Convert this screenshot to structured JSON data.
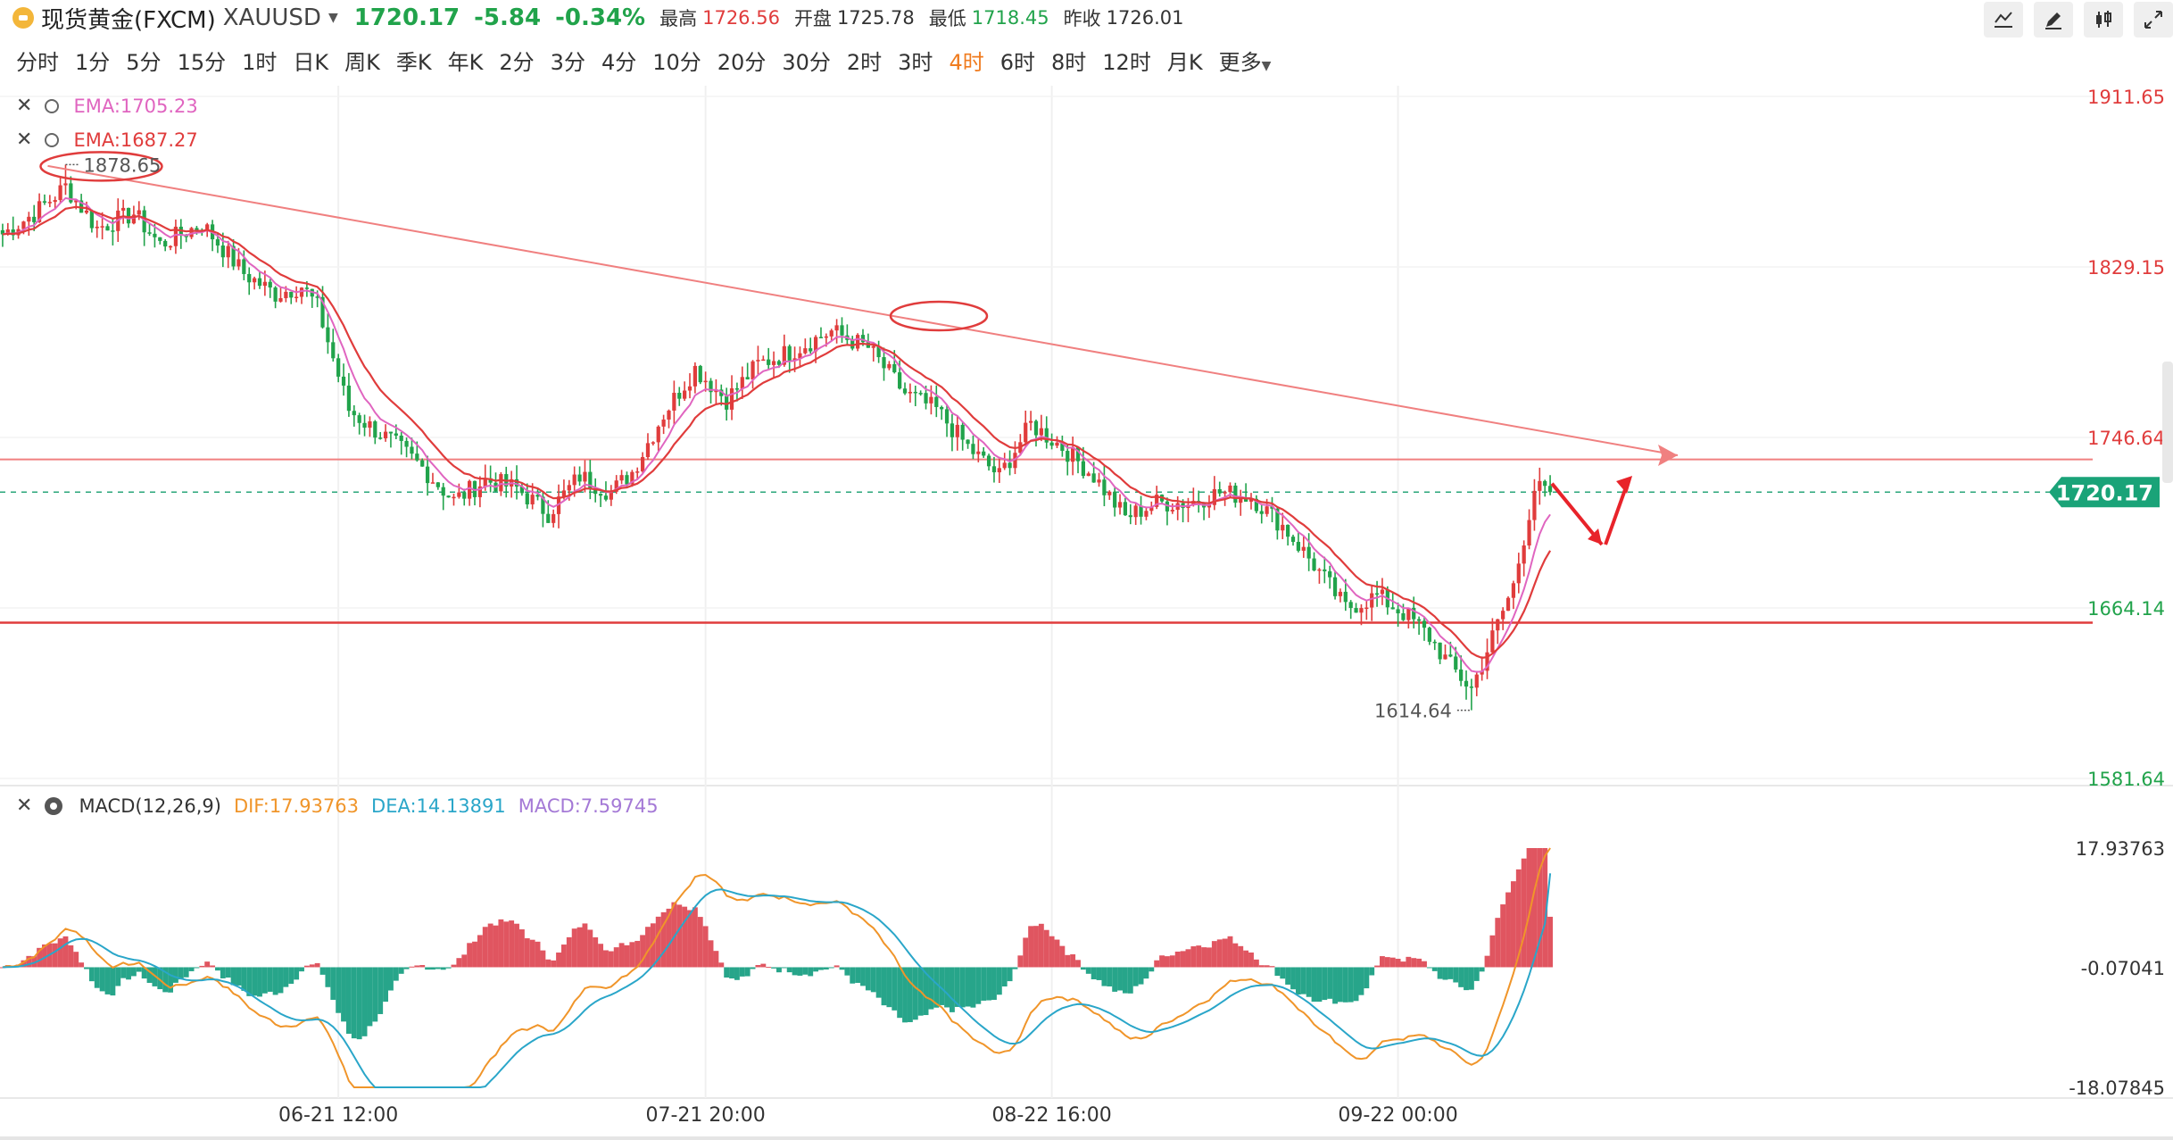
{
  "header": {
    "symbol_name": "现货黄金(FXCM)",
    "symbol_code": "XAUUSD",
    "last": "1720.17",
    "change": "-5.84",
    "change_pct": "-0.34%",
    "high_label": "最高",
    "high": "1726.56",
    "open_label": "开盘",
    "open": "1725.78",
    "low_label": "最低",
    "low": "1718.45",
    "prev_label": "昨收",
    "prev": "1726.01",
    "tools": [
      "trend-line-icon",
      "pencil-icon",
      "candle-type-icon",
      "expand-icon"
    ]
  },
  "periods": {
    "items": [
      "分时",
      "1分",
      "5分",
      "15分",
      "1时",
      "日K",
      "周K",
      "季K",
      "年K",
      "2分",
      "3分",
      "4分",
      "10分",
      "20分",
      "30分",
      "2时",
      "3时",
      "4时",
      "6时",
      "8时",
      "12时",
      "月K"
    ],
    "active": "4时",
    "more": "更多"
  },
  "legend": {
    "ema1": "EMA:1705.23",
    "ema1_color": "#e065c0",
    "ema2": "EMA:1687.27",
    "ema2_color": "#e03c3c",
    "macd_name": "MACD(12,26,9)",
    "dif": "DIF:17.93763",
    "dif_color": "#f0952a",
    "dea": "DEA:14.13891",
    "dea_color": "#2aa6c9",
    "macd": "MACD:7.59745",
    "macd_color": "#a479d6"
  },
  "chart_data": [
    {
      "type": "candlestick",
      "title": "",
      "y_ticks": [
        "1911.65",
        "1829.15",
        "1746.64",
        "1664.14",
        "1581.64"
      ],
      "ylim": [
        1581.64,
        1911.65
      ],
      "x_ticks": [
        "06-21 12:00",
        "07-21 20:00",
        "08-22 16:00",
        "09-22 00:00"
      ],
      "last_price": "1720.17",
      "annotations": {
        "high_mark": "1878.65",
        "low_mark": "1614.64"
      },
      "resistance_level": 1736.0,
      "support_level": 1657.0,
      "current_level": 1720.17,
      "trendline": [
        [
          0.0,
          1878.0
        ],
        [
          1.0,
          1738.0
        ]
      ],
      "anchors": [
        [
          0,
          1845
        ],
        [
          6,
          1855
        ],
        [
          12,
          1868
        ],
        [
          18,
          1848
        ],
        [
          25,
          1855
        ],
        [
          30,
          1840
        ],
        [
          38,
          1850
        ],
        [
          46,
          1826
        ],
        [
          52,
          1816
        ],
        [
          57,
          1820
        ],
        [
          60,
          1810
        ],
        [
          66,
          1760
        ],
        [
          70,
          1752
        ],
        [
          74,
          1745
        ],
        [
          80,
          1732
        ],
        [
          86,
          1716
        ],
        [
          92,
          1726
        ],
        [
          98,
          1722
        ],
        [
          104,
          1710
        ],
        [
          110,
          1728
        ],
        [
          116,
          1720
        ],
        [
          120,
          1730
        ],
        [
          126,
          1758
        ],
        [
          132,
          1780
        ],
        [
          138,
          1765
        ],
        [
          144,
          1782
        ],
        [
          150,
          1788
        ],
        [
          158,
          1798
        ],
        [
          165,
          1790
        ],
        [
          172,
          1768
        ],
        [
          178,
          1760
        ],
        [
          184,
          1742
        ],
        [
          190,
          1728
        ],
        [
          196,
          1753
        ],
        [
          202,
          1742
        ],
        [
          208,
          1728
        ],
        [
          214,
          1708
        ],
        [
          220,
          1715
        ],
        [
          226,
          1715
        ],
        [
          232,
          1720
        ],
        [
          238,
          1718
        ],
        [
          244,
          1704
        ],
        [
          250,
          1685
        ],
        [
          256,
          1664
        ],
        [
          262,
          1670
        ],
        [
          268,
          1660
        ],
        [
          272,
          1650
        ],
        [
          276,
          1636
        ],
        [
          280,
          1625
        ],
        [
          284,
          1650
        ],
        [
          288,
          1675
        ],
        [
          292,
          1722
        ],
        [
          295,
          1720
        ]
      ],
      "candle_count": 296,
      "ema_fast_label": "EMA:1705.23",
      "ema_slow_label": "EMA:1687.27",
      "forecast_arrow": [
        [
          0,
          1720
        ],
        [
          1,
          1700
        ],
        [
          2,
          1722
        ]
      ]
    },
    {
      "type": "macd",
      "y_ticks": [
        "17.93763",
        "-0.07041",
        "-18.07845"
      ],
      "ylim": [
        -18.07845,
        17.93763
      ],
      "dif": 17.93763,
      "dea": 14.13891,
      "macd": 7.59745
    }
  ]
}
